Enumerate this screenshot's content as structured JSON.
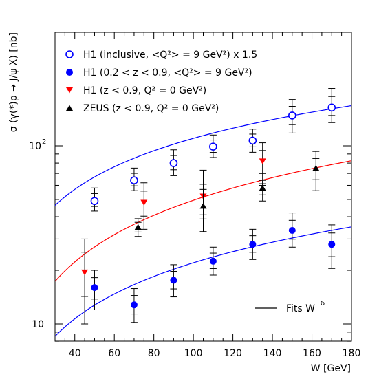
{
  "chart_data": {
    "type": "scatter",
    "title": "",
    "xlabel": "W [GeV]",
    "ylabel": "σ (γ(*)p → J/ψ X) [nb]",
    "x_ticks": [
      "40",
      "60",
      "80",
      "100",
      "120",
      "140",
      "160",
      "180"
    ],
    "y_tick_labels": [
      {
        "value": 10,
        "base": "10",
        "exp": ""
      },
      {
        "value": 100,
        "base": "10",
        "exp": "2"
      }
    ],
    "xlim": [
      30,
      180
    ],
    "ylim": [
      8,
      160
    ],
    "y_scale": "log",
    "grid": false,
    "legend_position": "top-left",
    "legend": [
      {
        "series": 0,
        "text": "H1 (inclusive, <Q²> = 9 GeV²) x 1.5"
      },
      {
        "series": 1,
        "text": "H1 (0.2 < z < 0.9, <Q²> = 9 GeV²)"
      },
      {
        "series": 2,
        "text": "H1 (z < 0.9, Q² = 0 GeV²)"
      },
      {
        "series": 3,
        "text": "ZEUS (z < 0.9, Q² = 0 GeV²)"
      }
    ],
    "fits_label": "Fits W",
    "fits_label_exp": "δ",
    "series": [
      {
        "name": "H1 (inclusive, <Q²> = 9 GeV²) x 1.5",
        "marker": "open-circle",
        "color": "#0000ff",
        "points": [
          {
            "x": 50,
            "y": 49,
            "lo": 43,
            "hi": 58
          },
          {
            "x": 70,
            "y": 64,
            "lo": 56,
            "hi": 75
          },
          {
            "x": 90,
            "y": 80,
            "lo": 68,
            "hi": 95
          },
          {
            "x": 110,
            "y": 99,
            "lo": 86,
            "hi": 115
          },
          {
            "x": 130,
            "y": 107,
            "lo": 92,
            "hi": 124
          },
          {
            "x": 150,
            "y": 148,
            "lo": 118,
            "hi": 182
          },
          {
            "x": 170,
            "y": 164,
            "lo": 135,
            "hi": 210
          }
        ]
      },
      {
        "name": "H1 (0.2 < z < 0.9, <Q²> = 9 GeV²)",
        "marker": "filled-circle",
        "color": "#0000ff",
        "points": [
          {
            "x": 50,
            "y": 16,
            "lo": 12,
            "hi": 20
          },
          {
            "x": 70,
            "y": 12.8,
            "lo": 10.2,
            "hi": 15.8
          },
          {
            "x": 90,
            "y": 17.6,
            "lo": 14.2,
            "hi": 21.5
          },
          {
            "x": 110,
            "y": 22.5,
            "lo": 18.8,
            "hi": 27
          },
          {
            "x": 130,
            "y": 28,
            "lo": 23,
            "hi": 34
          },
          {
            "x": 150,
            "y": 33.5,
            "lo": 27,
            "hi": 42
          },
          {
            "x": 170,
            "y": 28,
            "lo": 20.5,
            "hi": 36
          }
        ]
      },
      {
        "name": "H1 (z < 0.9, Q² = 0 GeV²)",
        "marker": "triangle-down",
        "color": "#ff0000",
        "points": [
          {
            "x": 45,
            "y": 19.5,
            "lo": 10,
            "hi": 30
          },
          {
            "x": 75,
            "y": 48,
            "lo": 34,
            "hi": 62
          },
          {
            "x": 105,
            "y": 52,
            "lo": 41,
            "hi": 61
          },
          {
            "x": 135,
            "y": 82,
            "lo": 60,
            "hi": 104
          }
        ]
      },
      {
        "name": "ZEUS (z < 0.9, Q² = 0 GeV²)",
        "marker": "triangle-up",
        "color": "#000000",
        "points": [
          {
            "x": 72,
            "y": 35,
            "lo": 31,
            "hi": 39
          },
          {
            "x": 105,
            "y": 46,
            "lo": 33,
            "hi": 73
          },
          {
            "x": 135,
            "y": 58,
            "lo": 49,
            "hi": 64
          },
          {
            "x": 162,
            "y": 75,
            "lo": 56,
            "hi": 93
          }
        ]
      }
    ],
    "fits": [
      {
        "color": "#0000ff",
        "A": 4.0,
        "delta": 0.72,
        "x_start": 30,
        "x_end": 180
      },
      {
        "color": "#ff0000",
        "A": 0.9,
        "delta": 0.87,
        "x_start": 30,
        "x_end": 180
      },
      {
        "color": "#0000ff",
        "A": 0.58,
        "delta": 0.79,
        "x_start": 30,
        "x_end": 180
      }
    ]
  }
}
